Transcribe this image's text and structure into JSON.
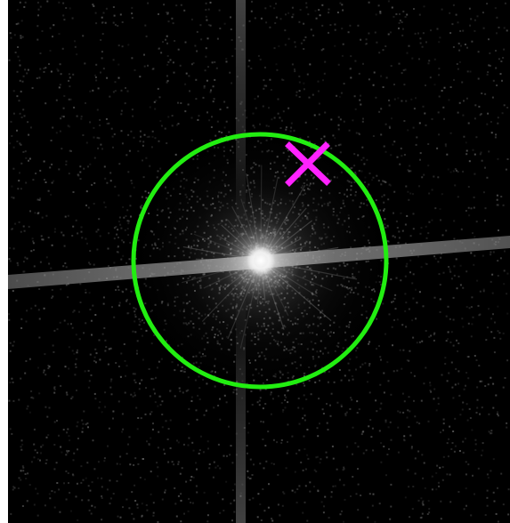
{
  "image": {
    "background_color": "#000000",
    "source_color": "#ffffff"
  },
  "overlays": {
    "region_circle": {
      "shape": "circle",
      "color": "#22ee11"
    },
    "marker": {
      "shape": "x-cross",
      "color": "#ff22ff"
    }
  }
}
